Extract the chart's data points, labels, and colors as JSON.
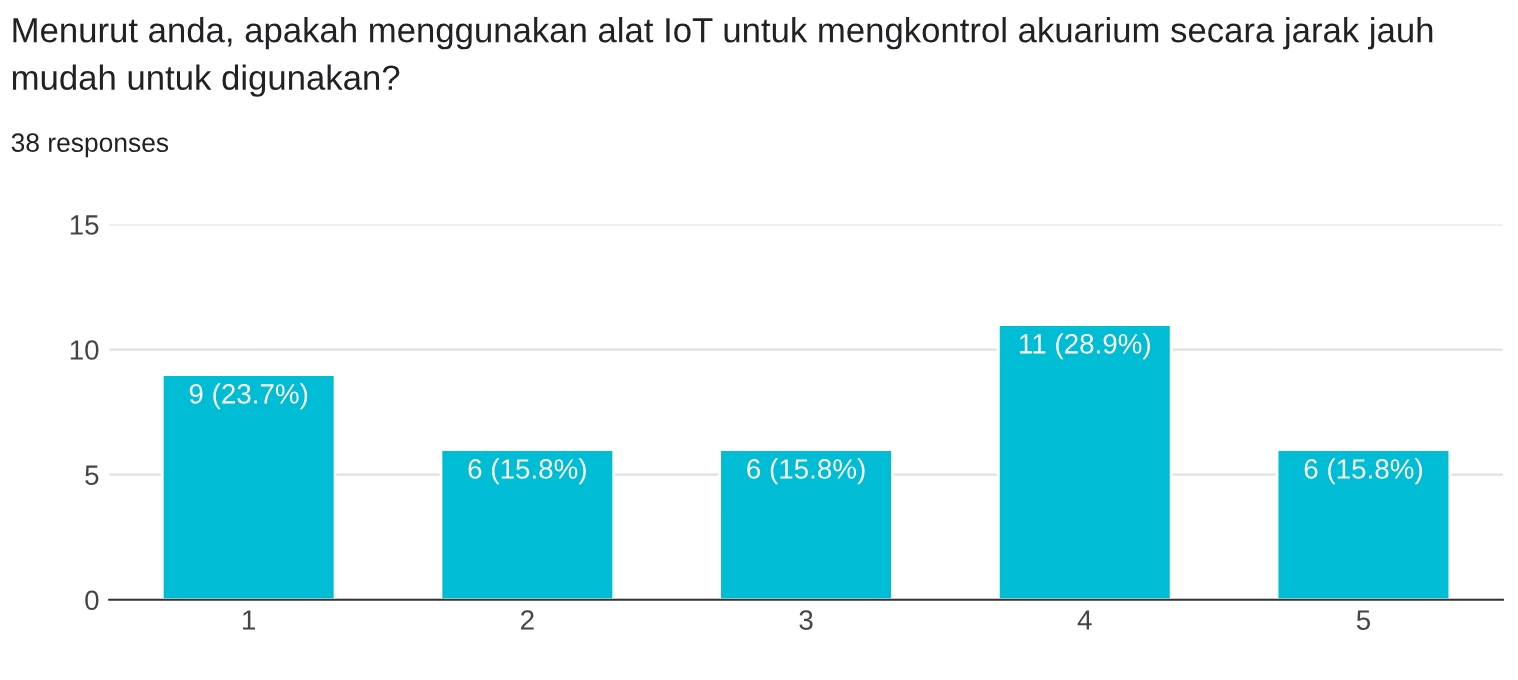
{
  "chart_data": {
    "type": "bar",
    "title": "Menurut anda, apakah menggunakan alat IoT untuk mengkontrol akuarium secara jarak jauh mudah untuk digunakan?",
    "subtitle": "38 responses",
    "categories": [
      "1",
      "2",
      "3",
      "4",
      "5"
    ],
    "values": [
      9,
      6,
      6,
      11,
      6
    ],
    "value_labels": [
      "9 (23.7%)",
      "6 (15.8%)",
      "6 (15.8%)",
      "11 (28.9%)",
      "6 (15.8%)"
    ],
    "color": "#00bcd4",
    "ylim": [
      0,
      15
    ],
    "yticks": [
      0,
      5,
      10,
      15
    ],
    "grid": "y"
  }
}
